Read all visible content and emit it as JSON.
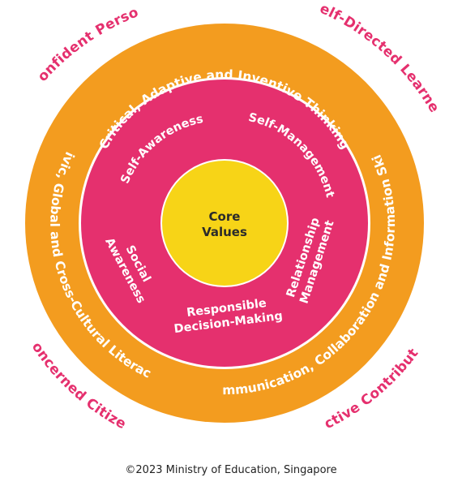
{
  "colors": {
    "outer_ring": "#f39c1f",
    "middle_ring": "#e5306e",
    "core": "#f7d417",
    "outcome_text": "#e5306e",
    "ring_text": "#ffffff",
    "core_text": "#2b2b2b"
  },
  "outcomes": {
    "top_left": "Confident Person",
    "top_right": "Self-Directed Learner",
    "bottom_left": "Concerned Citizen",
    "bottom_right": "Active Contributor"
  },
  "competencies_21st_century": {
    "top": "Critical, Adaptive and Inventive Thinking",
    "left": "Civic, Global and Cross-Cultural Literacy",
    "right": "Communication, Collaboration and Information Skills"
  },
  "social_emotional": {
    "self_awareness": "Self-Awareness",
    "self_management": "Self-Management",
    "social_awareness_1": "Social",
    "social_awareness_2": "Awareness",
    "relationship_management_1": "Relationship",
    "relationship_management_2": "Management",
    "responsible_decision_1": "Responsible",
    "responsible_decision_2": "Decision-Making"
  },
  "core": {
    "line1": "Core",
    "line2": "Values"
  },
  "footer": {
    "copyright": "©2023 Ministry of Education, Singapore"
  }
}
